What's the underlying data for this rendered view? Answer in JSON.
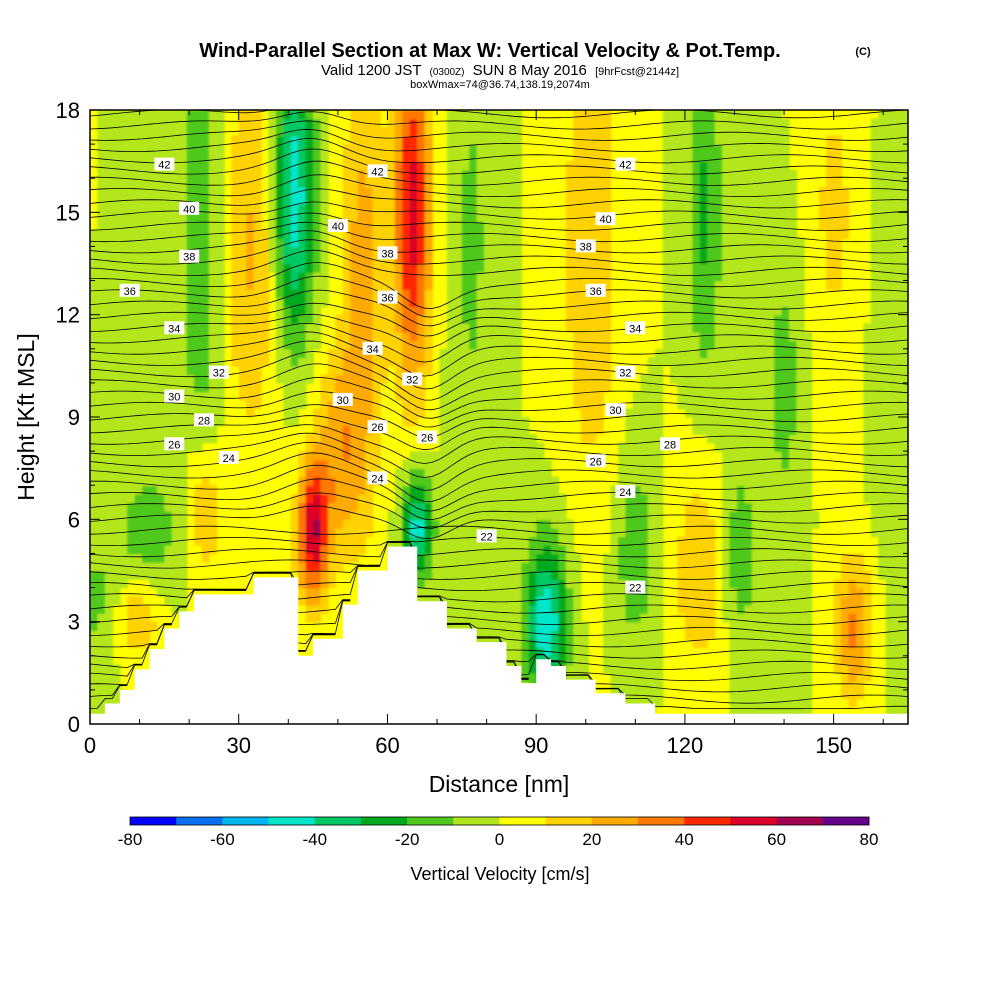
{
  "chart_data": {
    "type": "heatmap",
    "title": "Wind-Parallel Section at Max W: Vertical Velocity & Pot.Temp.",
    "title_mark": "(C)",
    "subtitle_parts": [
      "Valid 1200 JST",
      "(0300Z)",
      "SUN 8 May 2016",
      "[9hrFcst@2144z]"
    ],
    "subtitle2": "boxWmax=74@36.74,138.19,2074m",
    "xlabel": "Distance [nm]",
    "ylabel": "Height [Kft MSL]",
    "xlim": [
      0,
      165
    ],
    "ylim": [
      0,
      18
    ],
    "x_ticks": [
      "0",
      "30",
      "60",
      "90",
      "120",
      "150"
    ],
    "x_tick_values": [
      0,
      30,
      60,
      90,
      120,
      150
    ],
    "y_ticks": [
      "0",
      "3",
      "6",
      "9",
      "12",
      "15",
      "18"
    ],
    "y_tick_values": [
      0,
      3,
      6,
      9,
      12,
      15,
      18
    ],
    "colorbar": {
      "label": "Vertical Velocity [cm/s]",
      "min": -80,
      "max": 80,
      "tick_labels": [
        "-80",
        "-60",
        "-40",
        "-20",
        "0",
        "20",
        "40",
        "60",
        "80"
      ],
      "colors": [
        "#0000ff",
        "#0a6ef0",
        "#00b4f0",
        "#00e6c8",
        "#00c864",
        "#00aa1e",
        "#50c81e",
        "#b4e61e",
        "#ffff00",
        "#ffd200",
        "#ffaa00",
        "#ff7800",
        "#ff2800",
        "#dc0028",
        "#a00050",
        "#64008c"
      ]
    },
    "terrain_kft": [
      [
        0,
        0.3
      ],
      [
        3,
        0.6
      ],
      [
        6,
        1.0
      ],
      [
        9,
        1.6
      ],
      [
        12,
        2.2
      ],
      [
        15,
        2.8
      ],
      [
        18,
        3.3
      ],
      [
        21,
        3.8
      ],
      [
        33,
        4.3
      ],
      [
        42,
        2.0
      ],
      [
        45,
        2.5
      ],
      [
        51,
        3.5
      ],
      [
        54,
        4.5
      ],
      [
        60,
        5.2
      ],
      [
        66,
        3.6
      ],
      [
        72,
        2.8
      ],
      [
        78,
        2.4
      ],
      [
        84,
        1.7
      ],
      [
        87,
        1.2
      ],
      [
        90,
        1.9
      ],
      [
        93,
        1.7
      ],
      [
        96,
        1.3
      ],
      [
        102,
        0.9
      ],
      [
        108,
        0.6
      ],
      [
        114,
        0.3
      ],
      [
        165,
        0.3
      ]
    ],
    "velocity_cells": [
      {
        "x": 2,
        "y": 3.5,
        "sx": 4,
        "sy": 1.2,
        "w": -15
      },
      {
        "x": 12,
        "y": 5.6,
        "sx": 5,
        "sy": 1.5,
        "w": -15
      },
      {
        "x": 9,
        "y": 3.2,
        "sx": 4,
        "sy": 0.9,
        "w": 22
      },
      {
        "x": 23,
        "y": 6.2,
        "sx": 3,
        "sy": 1.5,
        "w": 22
      },
      {
        "x": 23,
        "y": 14,
        "sx": 3.5,
        "sy": 5,
        "w": -20
      },
      {
        "x": 32,
        "y": 14,
        "sx": 5,
        "sy": 4,
        "w": 22
      },
      {
        "x": 41,
        "y": 15.5,
        "sx": 3,
        "sy": 3,
        "w": -50
      },
      {
        "x": 45,
        "y": 5.6,
        "sx": 2.2,
        "sy": 1.4,
        "w": 58
      },
      {
        "x": 50,
        "y": 8,
        "sx": 3.5,
        "sy": 2,
        "w": 25
      },
      {
        "x": 66,
        "y": 5.8,
        "sx": 2.2,
        "sy": 1.1,
        "w": -45
      },
      {
        "x": 65,
        "y": 15,
        "sx": 2.6,
        "sy": 3.5,
        "w": 55
      },
      {
        "x": 55,
        "y": 13,
        "sx": 3,
        "sy": 5,
        "w": 25
      },
      {
        "x": 77,
        "y": 14,
        "sx": 3,
        "sy": 5,
        "w": -12
      },
      {
        "x": 92,
        "y": 3,
        "sx": 3,
        "sy": 1.7,
        "w": -48
      },
      {
        "x": 101,
        "y": 14,
        "sx": 4,
        "sy": 5,
        "w": 20
      },
      {
        "x": 110,
        "y": 5,
        "sx": 3,
        "sy": 2,
        "w": -18
      },
      {
        "x": 123,
        "y": 4.5,
        "sx": 4,
        "sy": 2.2,
        "w": 18
      },
      {
        "x": 124,
        "y": 15,
        "sx": 2.5,
        "sy": 3.5,
        "w": -22
      },
      {
        "x": 131,
        "y": 5,
        "sx": 2.5,
        "sy": 2,
        "w": -18
      },
      {
        "x": 140,
        "y": 10,
        "sx": 3,
        "sy": 3,
        "w": -14
      },
      {
        "x": 154,
        "y": 2.8,
        "sx": 2.6,
        "sy": 1.5,
        "w": 32
      },
      {
        "x": 150,
        "y": 15,
        "sx": 4,
        "sy": 4,
        "w": 12
      },
      {
        "x": 162,
        "y": 11,
        "sx": 3,
        "sy": 4,
        "w": -10
      }
    ],
    "isentropes": [
      {
        "label": "42",
        "label_positions": [
          [
            15,
            16.4
          ],
          [
            58,
            16.2
          ],
          [
            108,
            16.4
          ]
        ]
      },
      {
        "label": "40",
        "label_positions": [
          [
            20,
            15.1
          ],
          [
            50,
            14.6
          ],
          [
            104,
            14.8
          ]
        ]
      },
      {
        "label": "38",
        "label_positions": [
          [
            20,
            13.7
          ],
          [
            60,
            13.8
          ],
          [
            100,
            14.0
          ]
        ]
      },
      {
        "label": "36",
        "label_positions": [
          [
            8,
            12.7
          ],
          [
            60,
            12.5
          ],
          [
            102,
            12.7
          ]
        ]
      },
      {
        "label": "34",
        "label_positions": [
          [
            17,
            11.6
          ],
          [
            57,
            11.0
          ],
          [
            110,
            11.6
          ]
        ]
      },
      {
        "label": "32",
        "label_positions": [
          [
            26,
            10.3
          ],
          [
            65,
            10.1
          ],
          [
            108,
            10.3
          ]
        ]
      },
      {
        "label": "30",
        "label_positions": [
          [
            17,
            9.6
          ],
          [
            51,
            9.5
          ],
          [
            106,
            9.2
          ]
        ]
      },
      {
        "label": "28",
        "label_positions": [
          [
            23,
            8.9
          ],
          [
            117,
            8.2
          ]
        ]
      },
      {
        "label": "26",
        "label_positions": [
          [
            17,
            8.2
          ],
          [
            58,
            8.7
          ],
          [
            68,
            8.4
          ],
          [
            102,
            7.7
          ]
        ]
      },
      {
        "label": "24",
        "label_positions": [
          [
            28,
            7.8
          ],
          [
            58,
            7.2
          ],
          [
            108,
            6.8
          ]
        ]
      },
      {
        "label": "22",
        "label_positions": [
          [
            80,
            5.5
          ],
          [
            110,
            4.0
          ]
        ]
      }
    ]
  }
}
